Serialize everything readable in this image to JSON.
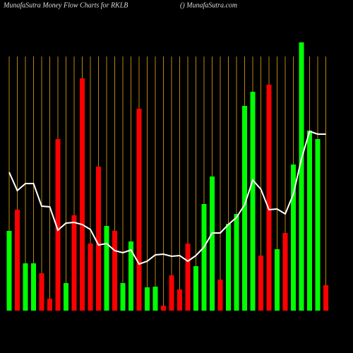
{
  "chart_data": {
    "type": "bar",
    "title": "MunafaSutra  Money Flow  Charts for RKLB",
    "subtitle": "() MunafaSutra.com",
    "values": [
      113,
      143,
      67,
      67,
      53,
      17,
      243,
      39,
      135,
      329,
      95,
      204,
      120,
      113,
      39,
      98,
      286,
      33,
      34,
      7,
      50,
      30,
      95,
      63,
      151,
      190,
      44,
      123,
      137,
      290,
      310,
      78,
      320,
      87,
      110,
      207,
      380,
      255,
      243,
      36
    ],
    "bar_colors": [
      "#00ff00",
      "#ff0000",
      "#00ff00",
      "#00ff00",
      "#ff0000",
      "#ff0000",
      "#ff0000",
      "#00ff00",
      "#ff0000",
      "#ff0000",
      "#ff0000",
      "#ff0000",
      "#00ff00",
      "#ff0000",
      "#00ff00",
      "#00ff00",
      "#ff0000",
      "#00ff00",
      "#00ff00",
      "#ff0000",
      "#ff0000",
      "#ff0000",
      "#ff0000",
      "#00ff00",
      "#00ff00",
      "#00ff00",
      "#ff0000",
      "#00ff00",
      "#00ff00",
      "#00ff00",
      "#00ff00",
      "#ff0000",
      "#ff0000",
      "#00ff00",
      "#ff0000",
      "#00ff00",
      "#00ff00",
      "#00ff00",
      "#00ff00",
      "#ff0000"
    ],
    "line_values": [
      196,
      170,
      180,
      180,
      148,
      147,
      114,
      124,
      125,
      122,
      115,
      93,
      95,
      85,
      82,
      86,
      66,
      70,
      79,
      80,
      77,
      78,
      70,
      78,
      90,
      110,
      110,
      122,
      132,
      150,
      185,
      172,
      143,
      144,
      137,
      165,
      215,
      254,
      250,
      250
    ],
    "line_color": "#ffffff",
    "grid_color": "#b8860b",
    "ylim": [
      0,
      440
    ]
  }
}
